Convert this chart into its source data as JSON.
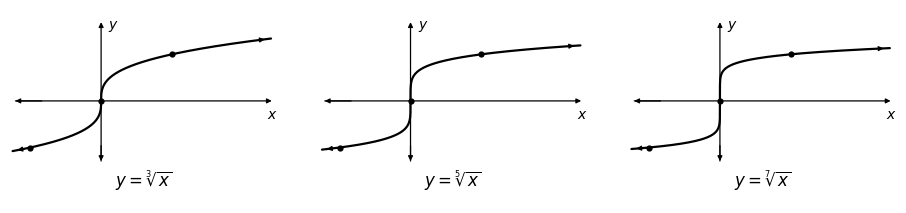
{
  "graphs": [
    {
      "root": 3
    },
    {
      "root": 5
    },
    {
      "root": 7
    }
  ],
  "xlim": [
    -1.3,
    2.5
  ],
  "ylim": [
    -1.4,
    1.8
  ],
  "x_range": [
    -2.2,
    2.2
  ],
  "curve_color": "#000000",
  "axis_color": "#000000",
  "dot_color": "#000000",
  "linewidth": 1.6,
  "background": "white",
  "label_fontsize": 12,
  "axis_label_fontsize": 10,
  "arrow_mutation_scale": 7,
  "dot_markersize": 4.5
}
